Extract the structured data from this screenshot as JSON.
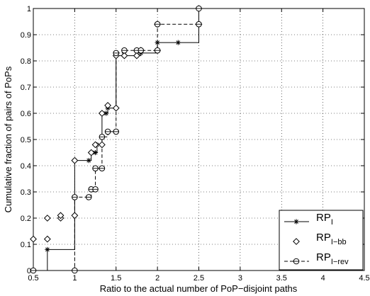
{
  "chart_data": {
    "type": "line",
    "subtype": "step-cdf",
    "title": "",
    "xlabel": "Ratio to the actual number of PoP−disjoint paths",
    "ylabel": "Cumulative fraction of pairs of PoPs",
    "xlim": [
      0.5,
      4.5
    ],
    "ylim": [
      0,
      1
    ],
    "xticks": [
      0.5,
      1,
      1.5,
      2,
      2.5,
      3,
      3.5,
      4,
      4.5
    ],
    "xtick_labels": [
      "0.5",
      "1",
      "1.5",
      "2",
      "2.5",
      "3",
      "3.5",
      "4",
      "4.5"
    ],
    "yticks": [
      0,
      0.1,
      0.2,
      0.3,
      0.4,
      0.5,
      0.6,
      0.7,
      0.8,
      0.9,
      1
    ],
    "ytick_labels": [
      "0",
      "0.1",
      "0.2",
      "0.3",
      "0.4",
      "0.5",
      "0.6",
      "0.7",
      "0.8",
      "0.9",
      "1"
    ],
    "grid": true,
    "legend_position": "bottom-right",
    "series": [
      {
        "legend_main": "RP",
        "legend_sub": "I",
        "line": "solid",
        "marker": "star",
        "color": "#000000",
        "points": [
          [
            0.5,
            0
          ],
          [
            0.67,
            0.08
          ],
          [
            1,
            0.42
          ],
          [
            1.17,
            0.42
          ],
          [
            1.2,
            0.45
          ],
          [
            1.25,
            0.45
          ],
          [
            1.27,
            0.48
          ],
          [
            1.33,
            0.6
          ],
          [
            1.38,
            0.6
          ],
          [
            1.4,
            0.62
          ],
          [
            1.5,
            0.82
          ],
          [
            1.6,
            0.82
          ],
          [
            1.75,
            0.82
          ],
          [
            1.8,
            0.83
          ],
          [
            2,
            0.87
          ],
          [
            2.25,
            0.87
          ],
          [
            2.5,
            1
          ]
        ]
      },
      {
        "legend_main": "RP",
        "legend_sub": "I−bb",
        "line": "none",
        "marker": "diamond",
        "color": "#000000",
        "points": [
          [
            0.5,
            0.12
          ],
          [
            0.67,
            0.12
          ],
          [
            0.67,
            0.2
          ],
          [
            0.83,
            0.2
          ],
          [
            0.83,
            0.21
          ],
          [
            1,
            0.21
          ],
          [
            1,
            0.42
          ],
          [
            1.2,
            0.45
          ],
          [
            1.25,
            0.48
          ],
          [
            1.33,
            0.48
          ],
          [
            1.33,
            0.6
          ],
          [
            1.4,
            0.63
          ],
          [
            1.5,
            0.62
          ],
          [
            1.5,
            0.82
          ],
          [
            1.6,
            0.82
          ],
          [
            1.75,
            0.82
          ],
          [
            1.8,
            0.84
          ],
          [
            2,
            0.84
          ],
          [
            2,
            0.94
          ],
          [
            2.5,
            0.94
          ],
          [
            2.5,
            1
          ]
        ]
      },
      {
        "legend_main": "RP",
        "legend_sub": "I−rev",
        "line": "dashed",
        "marker": "circle",
        "color": "#000000",
        "points": [
          [
            0.5,
            0
          ],
          [
            1,
            0
          ],
          [
            1,
            0.28
          ],
          [
            1.17,
            0.28
          ],
          [
            1.2,
            0.31
          ],
          [
            1.25,
            0.31
          ],
          [
            1.25,
            0.39
          ],
          [
            1.33,
            0.39
          ],
          [
            1.33,
            0.51
          ],
          [
            1.4,
            0.53
          ],
          [
            1.5,
            0.53
          ],
          [
            1.5,
            0.83
          ],
          [
            1.6,
            0.84
          ],
          [
            1.75,
            0.84
          ],
          [
            1.8,
            0.84
          ],
          [
            2,
            0.84
          ],
          [
            2,
            0.94
          ],
          [
            2.5,
            0.94
          ],
          [
            2.5,
            1
          ]
        ]
      }
    ]
  }
}
